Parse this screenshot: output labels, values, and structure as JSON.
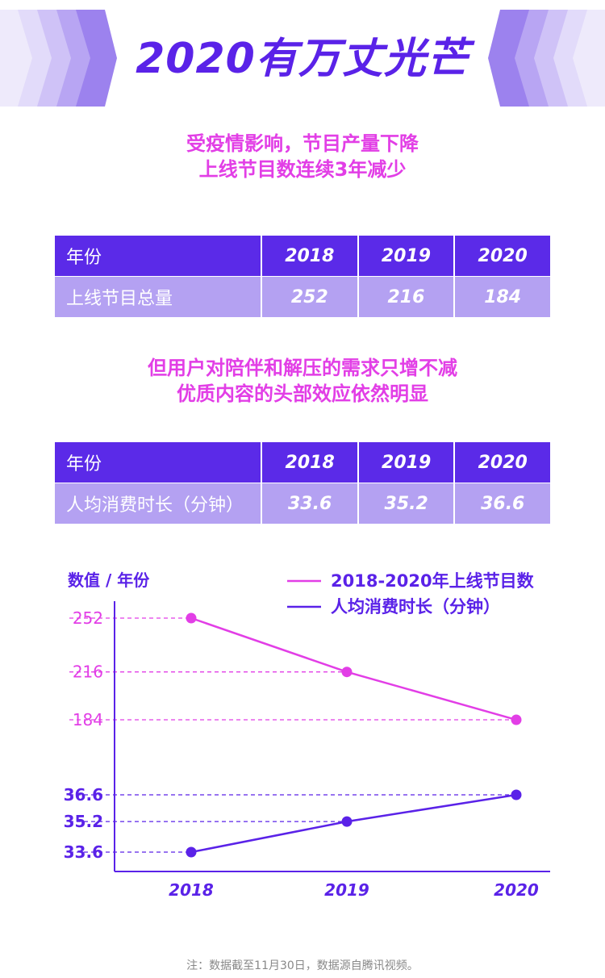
{
  "header": {
    "title": "2020有万丈光芒"
  },
  "section1": {
    "subtitle_line1": "受疫情影响，节目产量下降",
    "subtitle_line2": "上线节目数连续3年减少",
    "table": {
      "header_label": "年份",
      "years": [
        "2018",
        "2019",
        "2020"
      ],
      "row_label": "上线节目总量",
      "values": [
        "252",
        "216",
        "184"
      ]
    }
  },
  "section2": {
    "subtitle_line1": "但用户对陪伴和解压的需求只增不减",
    "subtitle_line2": "优质内容的头部效应依然明显",
    "table": {
      "header_label": "年份",
      "years": [
        "2018",
        "2019",
        "2020"
      ],
      "row_label": "人均消费时长（分钟）",
      "values": [
        "33.6",
        "35.2",
        "36.6"
      ]
    }
  },
  "chart_data": {
    "type": "line",
    "ylabel": "数值 / 年份",
    "x": [
      "2018",
      "2019",
      "2020"
    ],
    "series": [
      {
        "name": "2018-2020年上线节目数",
        "color": "#e23ee6",
        "values": [
          252,
          216,
          184
        ]
      },
      {
        "name": "人均消费时长（分钟）",
        "color": "#5a22e8",
        "values": [
          33.6,
          35.2,
          36.6
        ]
      }
    ],
    "y_tick_labels": [
      "252",
      "216",
      "184",
      "36.6",
      "35.2",
      "33.6"
    ],
    "grid": false,
    "legend_position": "top-right"
  },
  "footer": {
    "note": "注：数据截至11月30日，数据源自腾讯视频。"
  },
  "colors": {
    "primary": "#5a22e8",
    "accent": "#e23ee6",
    "table_head": "#5b2ae8",
    "table_body": "#b4a1f2"
  }
}
